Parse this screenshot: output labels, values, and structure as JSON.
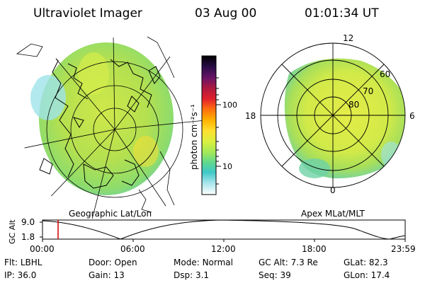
{
  "header": {
    "title": "Ultraviolet Imager",
    "date": "03 Aug 00",
    "time": "01:01:34 UT"
  },
  "left_panel": {
    "label": "Geographic Lat/Lon"
  },
  "right_panel": {
    "label": "Apex MLat/MLT",
    "mlt_labels": {
      "top": "12",
      "bottom": "0",
      "left": "18",
      "right": "6"
    },
    "lat_labels": [
      "60",
      "70",
      "80"
    ]
  },
  "colorbar": {
    "unit_label": "photon cm⁻²s⁻¹",
    "tick_labels": [
      "100",
      "10"
    ],
    "colors": [
      "#000000",
      "#2a0d48",
      "#6b1466",
      "#b31a3c",
      "#e0202c",
      "#ff6a10",
      "#ffb000",
      "#ffe030",
      "#d8f040",
      "#9fe85a",
      "#5fd890",
      "#3fc8c8",
      "#9fe3ea",
      "#e6f7f9",
      "#ffffff"
    ]
  },
  "timeline": {
    "y_label": "GC Alt",
    "y_ticks": [
      "9.0",
      "1.8"
    ],
    "x_ticks": [
      "00:00",
      "06:00",
      "12:00",
      "18:00",
      "23:59"
    ],
    "marker_time": "01:01"
  },
  "info": {
    "row1": [
      {
        "label": "Flt:",
        "value": "LBHL"
      },
      {
        "label": "Door:",
        "value": "Open"
      },
      {
        "label": "Mode:",
        "value": "Normal"
      },
      {
        "label": "GC Alt:",
        "value": "7.3 Re"
      },
      {
        "label": "GLat:",
        "value": "82.3"
      }
    ],
    "row2": [
      {
        "label": "IP:",
        "value": "36.0"
      },
      {
        "label": "Gain:",
        "value": "13"
      },
      {
        "label": "Dsp:",
        "value": "3.1"
      },
      {
        "label": "Seq:",
        "value": "39"
      },
      {
        "label": "GLon:",
        "value": "17.4"
      }
    ]
  },
  "colors": {
    "aurora_main": "#a8df5a",
    "aurora_bright": "#d6ec4a",
    "aurora_edge": "#6fd2a6",
    "marker": "#d00000"
  }
}
